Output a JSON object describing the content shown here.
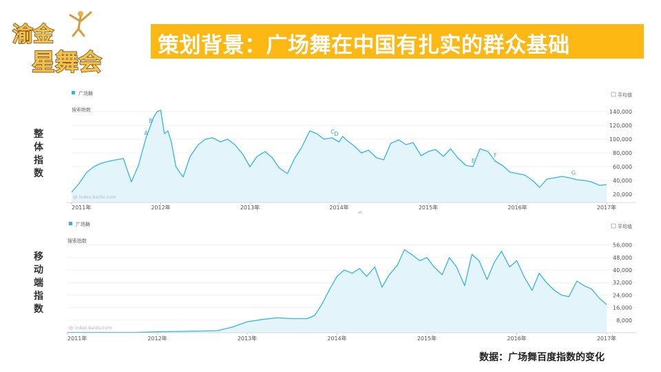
{
  "logo": {
    "line1": "渝金",
    "line2": "星舞会"
  },
  "title": "策划背景：广场舞在中国有扎实的群众基础",
  "labels": {
    "overall": "整体指数",
    "mobile": "移动端指数"
  },
  "caption": "数据：广场舞百度指数的变化",
  "colors": {
    "title_bg": "#fdb813",
    "series_line": "#33b4e6",
    "series_fill": "#e3f4fb"
  },
  "chart_data": [
    {
      "type": "area",
      "legend": [
        "广场舞"
      ],
      "avg_checkbox_label": "平均值",
      "ylabel": "搜索指数",
      "watermark": "@ index.baidu.com",
      "x_ticks": [
        "2011年",
        "2012年",
        "2013年",
        "2014年",
        "2015年",
        "2016年",
        "2017年"
      ],
      "y_ticks": [
        "140,000",
        "120,000",
        "100,000",
        "80,000",
        "60,000",
        "40,000",
        "20,000"
      ],
      "y_tick_values": [
        140000,
        120000,
        100000,
        80000,
        60000,
        40000,
        20000
      ],
      "ylim": [
        8000,
        150000
      ],
      "series": [
        {
          "name": "广场舞",
          "x": [
            2011.0,
            2011.08,
            2011.17,
            2011.25,
            2011.33,
            2011.42,
            2011.5,
            2011.58,
            2011.67,
            2011.75,
            2011.83,
            2011.88,
            2011.92,
            2011.96,
            2012.0,
            2012.04,
            2012.08,
            2012.12,
            2012.17,
            2012.25,
            2012.33,
            2012.42,
            2012.5,
            2012.58,
            2012.67,
            2012.75,
            2012.83,
            2012.92,
            2013.0,
            2013.08,
            2013.17,
            2013.25,
            2013.33,
            2013.42,
            2013.5,
            2013.58,
            2013.67,
            2013.75,
            2013.83,
            2013.92,
            2014.0,
            2014.04,
            2014.08,
            2014.17,
            2014.25,
            2014.33,
            2014.42,
            2014.5,
            2014.58,
            2014.67,
            2014.75,
            2014.83,
            2014.92,
            2015.0,
            2015.08,
            2015.17,
            2015.25,
            2015.33,
            2015.42,
            2015.5,
            2015.58,
            2015.67,
            2015.75,
            2015.83,
            2015.92,
            2016.0,
            2016.08,
            2016.17,
            2016.25,
            2016.33,
            2016.42,
            2016.5,
            2016.58,
            2016.67,
            2016.75,
            2016.83,
            2016.92,
            2017.0
          ],
          "values": [
            23000,
            35000,
            52000,
            60000,
            65000,
            68000,
            70000,
            72000,
            38000,
            62000,
            100000,
            118000,
            132000,
            140000,
            142000,
            108000,
            112000,
            95000,
            60000,
            45000,
            75000,
            92000,
            100000,
            102000,
            96000,
            100000,
            92000,
            78000,
            60000,
            75000,
            82000,
            73000,
            58000,
            50000,
            72000,
            88000,
            112000,
            108000,
            100000,
            102000,
            96000,
            104000,
            99000,
            90000,
            80000,
            84000,
            73000,
            70000,
            94000,
            99000,
            92000,
            95000,
            76000,
            82000,
            85000,
            75000,
            86000,
            73000,
            62000,
            60000,
            86000,
            82000,
            68000,
            62000,
            52000,
            50000,
            48000,
            40000,
            30000,
            42000,
            44000,
            46000,
            44000,
            41000,
            40000,
            38000,
            33000,
            34000
          ]
        }
      ],
      "annotations": [
        {
          "label": "A",
          "x": 2011.83
        },
        {
          "label": "B",
          "x": 2011.88
        },
        {
          "label": "C",
          "x": 2013.92
        },
        {
          "label": "D",
          "x": 2013.96
        },
        {
          "label": "E",
          "x": 2015.5
        },
        {
          "label": "F",
          "x": 2015.75
        },
        {
          "label": "G",
          "x": 2016.62
        }
      ]
    },
    {
      "type": "area",
      "legend": [
        "广场舞"
      ],
      "avg_checkbox_label": "平均值",
      "ylabel": "搜索指数",
      "watermark": "@ index.baidu.com",
      "x_ticks": [
        "2011年",
        "2012年",
        "2013年",
        "2014年",
        "2015年",
        "2016年",
        "2017年"
      ],
      "y_ticks": [
        "56,000",
        "48,000",
        "40,000",
        "32,000",
        "24,000",
        "16,000",
        "8,000"
      ],
      "y_tick_values": [
        56000,
        48000,
        40000,
        32000,
        24000,
        16000,
        8000
      ],
      "ylim": [
        0,
        62000
      ],
      "series": [
        {
          "name": "广场舞",
          "x": [
            2011.0,
            2011.25,
            2011.5,
            2011.75,
            2012.0,
            2012.25,
            2012.5,
            2012.67,
            2012.83,
            2013.0,
            2013.17,
            2013.33,
            2013.5,
            2013.67,
            2013.75,
            2013.83,
            2013.92,
            2014.0,
            2014.08,
            2014.17,
            2014.25,
            2014.33,
            2014.42,
            2014.5,
            2014.58,
            2014.67,
            2014.75,
            2014.83,
            2014.92,
            2015.0,
            2015.08,
            2015.17,
            2015.25,
            2015.33,
            2015.42,
            2015.5,
            2015.58,
            2015.67,
            2015.75,
            2015.83,
            2015.92,
            2016.0,
            2016.08,
            2016.17,
            2016.25,
            2016.33,
            2016.42,
            2016.5,
            2016.58,
            2016.67,
            2016.75,
            2016.83,
            2016.92,
            2017.0
          ],
          "values": [
            200,
            200,
            200,
            200,
            600,
            900,
            1100,
            1300,
            3500,
            7000,
            8500,
            9500,
            9000,
            9000,
            11000,
            18000,
            28000,
            36000,
            40000,
            38000,
            41000,
            36000,
            42000,
            29000,
            37000,
            43000,
            53000,
            50000,
            46000,
            48000,
            42000,
            37000,
            48000,
            42000,
            30000,
            50000,
            46000,
            34000,
            45000,
            52000,
            42000,
            46000,
            36000,
            27000,
            38000,
            32000,
            27000,
            24000,
            23000,
            33000,
            30000,
            28000,
            22000,
            18000
          ]
        }
      ]
    }
  ]
}
